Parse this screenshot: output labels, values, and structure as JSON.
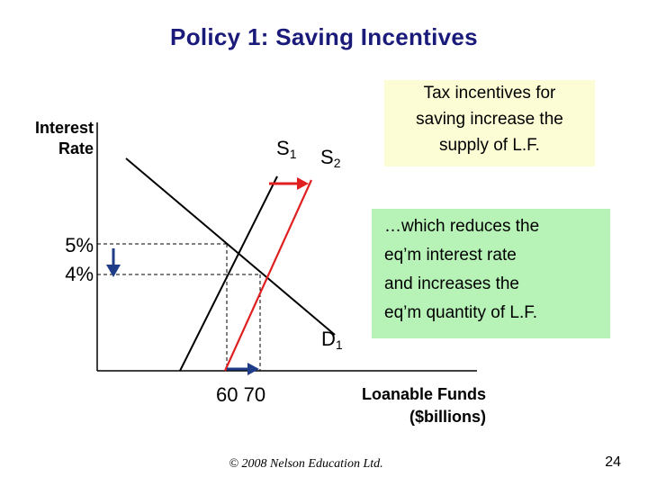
{
  "title": "Policy 1:  Saving Incentives",
  "axes": {
    "y_label_line1": "Interest",
    "y_label_line2": "Rate",
    "x_label_line1": "Loanable Funds",
    "x_label_line2": "($billions)"
  },
  "rates": {
    "high": "5%",
    "low": "4%"
  },
  "quantities": {
    "label": "60 70"
  },
  "curves": {
    "s1": {
      "letter": "S",
      "sub": "1"
    },
    "s2": {
      "letter": "S",
      "sub": "2"
    },
    "d1": {
      "letter": "D",
      "sub": "1"
    }
  },
  "notes": {
    "top": [
      "Tax incentives for",
      "saving increase the",
      "supply of L.F."
    ],
    "bottom": [
      "…which reduces the",
      "eq’m interest rate",
      "and increases the",
      "eq’m quantity of L.F."
    ]
  },
  "footer": "© 2008 Nelson Education Ltd.",
  "page_number": "24",
  "colors": {
    "title": "#1a1a7a",
    "s2_curve": "#e02020",
    "arrow": "#1f3c88",
    "note_top": "#fdfdd5",
    "note_bottom": "#b7f3b7"
  }
}
